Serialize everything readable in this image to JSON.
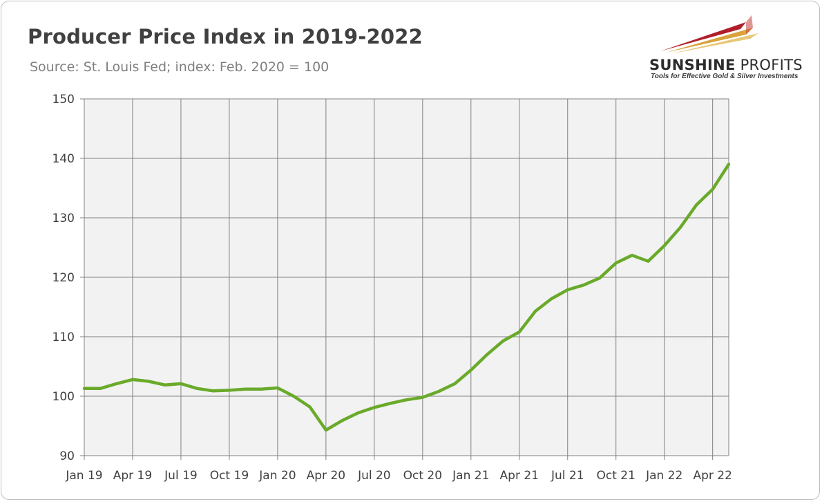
{
  "header": {
    "title": "Producer Price Index in 2019-2022",
    "subtitle": "Source: St. Louis Fed; index: Feb. 2020 = 100"
  },
  "logo": {
    "name_bold": "SUNSHINE",
    "name_light": " PROFITS",
    "tagline": "Tools for Effective Gold & Silver Investments"
  },
  "colors": {
    "line": "#6aaa2a",
    "plot_background": "#f2f2f2",
    "grid": "#808080"
  },
  "chart_data": {
    "type": "line",
    "title": "Producer Price Index in 2019-2022",
    "subtitle": "Source: St. Louis Fed; index: Feb. 2020 = 100",
    "xlabel": "",
    "ylabel": "",
    "ylim": [
      90,
      150
    ],
    "yticks": [
      90,
      100,
      110,
      120,
      130,
      140,
      150
    ],
    "x_tick_labels": [
      "Jan 19",
      "Apr 19",
      "Jul 19",
      "Oct 19",
      "Jan 20",
      "Apr 20",
      "Jul 20",
      "Oct 20",
      "Jan 21",
      "Apr 21",
      "Jul 21",
      "Oct 21",
      "Jan 22",
      "Apr 22"
    ],
    "x": [
      "2019-01",
      "2019-02",
      "2019-03",
      "2019-04",
      "2019-05",
      "2019-06",
      "2019-07",
      "2019-08",
      "2019-09",
      "2019-10",
      "2019-11",
      "2019-12",
      "2020-01",
      "2020-02",
      "2020-03",
      "2020-04",
      "2020-05",
      "2020-06",
      "2020-07",
      "2020-08",
      "2020-09",
      "2020-10",
      "2020-11",
      "2020-12",
      "2021-01",
      "2021-02",
      "2021-03",
      "2021-04",
      "2021-05",
      "2021-06",
      "2021-07",
      "2021-08",
      "2021-09",
      "2021-10",
      "2021-11",
      "2021-12",
      "2022-01",
      "2022-02",
      "2022-03",
      "2022-04",
      "2022-05"
    ],
    "series": [
      {
        "values": [
          101.3,
          101.3,
          102.1,
          102.8,
          102.5,
          101.9,
          102.1,
          101.3,
          100.9,
          101.0,
          101.2,
          101.2,
          101.4,
          100.0,
          98.2,
          94.3,
          95.9,
          97.2,
          98.1,
          98.8,
          99.4,
          99.8,
          100.8,
          102.1,
          104.4,
          107.0,
          109.3,
          110.8,
          114.3,
          116.4,
          117.9,
          118.7,
          119.9,
          122.4,
          123.7,
          122.7,
          125.3,
          128.4,
          132.2,
          134.8,
          139.0
        ]
      }
    ],
    "grid": true,
    "legend": "none"
  }
}
